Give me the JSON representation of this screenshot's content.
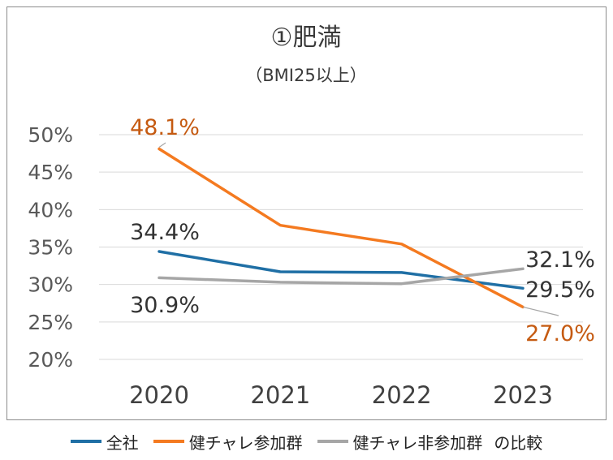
{
  "chart_data": {
    "type": "line",
    "title": "①肥満",
    "subtitle": "（BMI25以上）",
    "categories": [
      "2020",
      "2021",
      "2022",
      "2023"
    ],
    "ylim": [
      20,
      50
    ],
    "yticks": [
      "20%",
      "25%",
      "30%",
      "35%",
      "40%",
      "45%",
      "50%"
    ],
    "grid": true,
    "legend_position": "bottom",
    "series": [
      {
        "name": "全社",
        "color": "#1f6fa5",
        "values": [
          34.4,
          31.7,
          31.6,
          29.5
        ],
        "labels": {
          "0": "34.4%",
          "3": "29.5%"
        },
        "label_color": "#333333"
      },
      {
        "name": "健チャレ参加群",
        "color": "#f47a20",
        "values": [
          48.1,
          37.9,
          35.4,
          27.0
        ],
        "labels": {
          "0": "48.1%",
          "3": "27.0%"
        },
        "label_color": "#c55a11"
      },
      {
        "name": "健チャレ非参加群",
        "color": "#a6a6a6",
        "values": [
          30.9,
          30.3,
          30.1,
          32.1
        ],
        "labels": {
          "0": "30.9%",
          "3": "32.1%"
        },
        "label_color": "#333333"
      }
    ]
  },
  "legend": {
    "item_1": "全社",
    "item_2": "健チャレ参加群",
    "item_3": "健チャレ非参加群",
    "suffix": "の比較"
  }
}
